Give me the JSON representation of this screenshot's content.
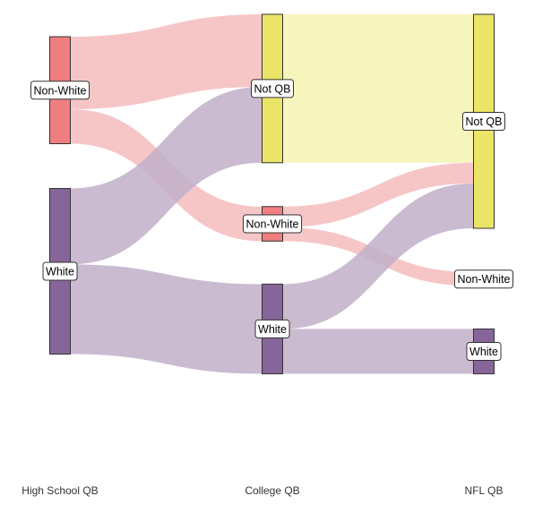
{
  "chart_data": {
    "type": "sankey",
    "title": "",
    "axes": [
      "High School QB",
      "College QB",
      "NFL QB"
    ],
    "scale_total": 100,
    "nodes": [
      {
        "id": "hs_nonwhite",
        "axis": 0,
        "label": "Non-White",
        "group": "Non-White"
      },
      {
        "id": "hs_white",
        "axis": 0,
        "label": "White",
        "group": "White"
      },
      {
        "id": "col_notqb",
        "axis": 1,
        "label": "Not QB",
        "group": "Not QB"
      },
      {
        "id": "col_nonwhite",
        "axis": 1,
        "label": "Non-White",
        "group": "Non-White"
      },
      {
        "id": "col_white",
        "axis": 1,
        "label": "White",
        "group": "White"
      },
      {
        "id": "nfl_notqb",
        "axis": 2,
        "label": "Not QB",
        "group": "Not QB"
      },
      {
        "id": "nfl_nonwhite",
        "axis": 2,
        "label": "Non-White",
        "group": "Non-White"
      },
      {
        "id": "nfl_white",
        "axis": 2,
        "label": "White",
        "group": "White"
      }
    ],
    "flows": [
      {
        "source": "hs_nonwhite",
        "target": "col_notqb",
        "value": 21
      },
      {
        "source": "hs_nonwhite",
        "target": "col_nonwhite",
        "value": 10
      },
      {
        "source": "hs_white",
        "target": "col_notqb",
        "value": 22
      },
      {
        "source": "hs_white",
        "target": "col_white",
        "value": 26
      },
      {
        "source": "col_notqb",
        "target": "nfl_notqb",
        "value": 43
      },
      {
        "source": "col_nonwhite",
        "target": "nfl_notqb",
        "value": 6
      },
      {
        "source": "col_nonwhite",
        "target": "nfl_nonwhite",
        "value": 4
      },
      {
        "source": "col_white",
        "target": "nfl_notqb",
        "value": 13
      },
      {
        "source": "col_white",
        "target": "nfl_white",
        "value": 13
      }
    ],
    "colors": {
      "Non-White": "#f07d80",
      "White": "#86659a",
      "Not QB": "#eae566"
    },
    "flow_colors": {
      "Non-White": "#f5bcbd",
      "White": "#c1afc9",
      "Not QB": "#f4f3b3"
    }
  }
}
